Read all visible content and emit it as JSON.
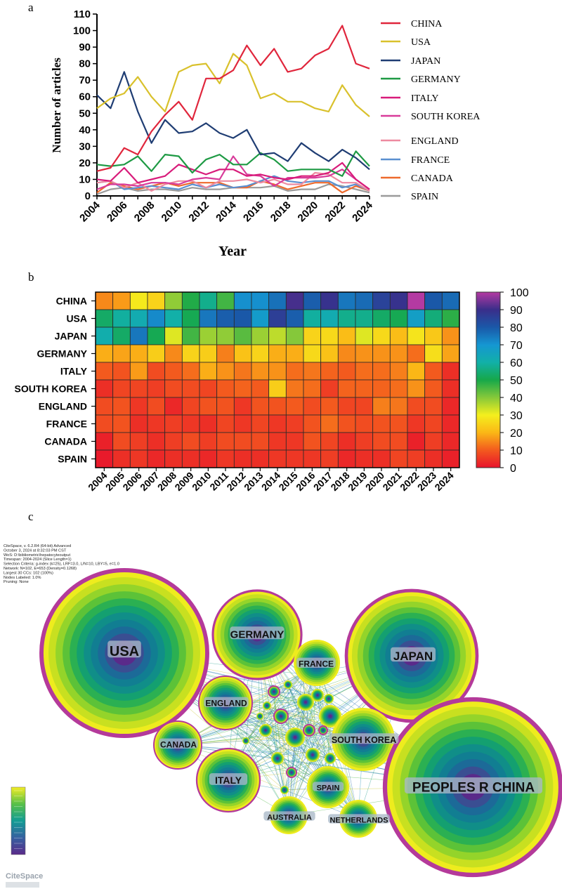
{
  "panel_labels": {
    "a": "a",
    "b": "b",
    "c": "c"
  },
  "colors": {
    "CHINA": "#e0263c",
    "USA": "#d9c12c",
    "JAPAN": "#1f3d73",
    "GERMANY": "#1e9a44",
    "ITALY": "#d81b7a",
    "SOUTH KOREA": "#d83b9a",
    "ENGLAND": "#ee8aa0",
    "FRANCE": "#5a8fd0",
    "CANADA": "#ee6a2c",
    "SPAIN": "#9a9a9a"
  },
  "chart_data": [
    {
      "type": "line",
      "panel": "a",
      "title": "",
      "xlabel": "Year",
      "ylabel": "Number of articles",
      "ylim": [
        0,
        110
      ],
      "yticks": [
        0,
        10,
        20,
        30,
        40,
        50,
        60,
        70,
        80,
        90,
        100,
        110
      ],
      "x": [
        2004,
        2005,
        2006,
        2007,
        2008,
        2009,
        2010,
        2011,
        2012,
        2013,
        2014,
        2015,
        2016,
        2017,
        2018,
        2019,
        2020,
        2021,
        2022,
        2023,
        2024
      ],
      "xticks": [
        "2004",
        "2006",
        "2008",
        "2010",
        "2012",
        "2014",
        "2016",
        "2018",
        "2020",
        "2022",
        "2024"
      ],
      "legend_position": "right",
      "series": [
        {
          "name": "CHINA",
          "values": [
            15,
            17,
            29,
            25,
            39,
            49,
            57,
            46,
            71,
            71,
            76,
            91,
            79,
            89,
            75,
            77,
            85,
            89,
            103,
            80,
            77
          ]
        },
        {
          "name": "USA",
          "values": [
            53,
            59,
            62,
            72,
            60,
            51,
            75,
            79,
            80,
            68,
            86,
            79,
            59,
            62,
            57,
            57,
            53,
            51,
            67,
            55,
            48
          ]
        },
        {
          "name": "JAPAN",
          "values": [
            61,
            53,
            75,
            51,
            32,
            46,
            38,
            39,
            44,
            38,
            35,
            40,
            25,
            26,
            21,
            32,
            26,
            21,
            28,
            23,
            16
          ]
        },
        {
          "name": "GERMANY",
          "values": [
            19,
            18,
            19,
            24,
            15,
            25,
            24,
            14,
            22,
            25,
            19,
            19,
            26,
            22,
            15,
            16,
            16,
            16,
            12,
            27,
            18
          ]
        },
        {
          "name": "ITALY",
          "values": [
            10,
            9,
            17,
            8,
            10,
            12,
            19,
            16,
            13,
            16,
            16,
            12,
            13,
            11,
            10,
            12,
            12,
            14,
            20,
            10,
            4
          ]
        },
        {
          "name": "SOUTH KOREA",
          "values": [
            4,
            7,
            7,
            6,
            8,
            8,
            7,
            10,
            11,
            10,
            24,
            13,
            12,
            6,
            11,
            11,
            11,
            12,
            16,
            10,
            4
          ]
        },
        {
          "name": "ENGLAND",
          "values": [
            8,
            9,
            5,
            8,
            3,
            7,
            9,
            9,
            5,
            9,
            9,
            10,
            8,
            10,
            7,
            7,
            14,
            13,
            8,
            8,
            3
          ]
        },
        {
          "name": "FRANCE",
          "values": [
            8,
            9,
            4,
            5,
            6,
            5,
            4,
            7,
            5,
            7,
            5,
            6,
            9,
            12,
            9,
            8,
            9,
            9,
            5,
            7,
            3
          ]
        },
        {
          "name": "CANADA",
          "values": [
            2,
            8,
            6,
            4,
            6,
            8,
            6,
            8,
            8,
            8,
            5,
            5,
            9,
            7,
            4,
            6,
            8,
            8,
            2,
            6,
            3
          ]
        },
        {
          "name": "SPAIN",
          "values": [
            1,
            4,
            5,
            3,
            4,
            4,
            3,
            5,
            4,
            4,
            5,
            5,
            5,
            6,
            3,
            4,
            4,
            7,
            6,
            4,
            2
          ]
        }
      ]
    },
    {
      "type": "heatmap",
      "panel": "b",
      "rows": [
        "CHINA",
        "USA",
        "JAPAN",
        "GERMANY",
        "ITALY",
        "SOUTH KOREA",
        "ENGLAND",
        "FRANCE",
        "CANADA",
        "SPAIN"
      ],
      "columns": [
        "2004",
        "2005",
        "2006",
        "2007",
        "2008",
        "2009",
        "2010",
        "2011",
        "2012",
        "2013",
        "2014",
        "2015",
        "2016",
        "2017",
        "2018",
        "2019",
        "2020",
        "2021",
        "2022",
        "2023",
        "2024"
      ],
      "values": [
        [
          15,
          17,
          29,
          25,
          39,
          49,
          57,
          46,
          71,
          71,
          76,
          91,
          79,
          89,
          75,
          77,
          85,
          89,
          103,
          80,
          77
        ],
        [
          53,
          59,
          62,
          72,
          60,
          51,
          75,
          79,
          80,
          68,
          86,
          79,
          59,
          62,
          57,
          57,
          53,
          51,
          67,
          55,
          48
        ],
        [
          61,
          53,
          75,
          51,
          32,
          46,
          38,
          39,
          44,
          38,
          35,
          40,
          25,
          26,
          21,
          32,
          26,
          21,
          28,
          23,
          16
        ],
        [
          19,
          18,
          19,
          24,
          15,
          25,
          24,
          14,
          22,
          25,
          19,
          19,
          26,
          22,
          15,
          16,
          16,
          16,
          12,
          27,
          18
        ],
        [
          10,
          9,
          17,
          8,
          10,
          12,
          19,
          16,
          13,
          16,
          16,
          12,
          13,
          11,
          10,
          12,
          12,
          14,
          20,
          10,
          4
        ],
        [
          4,
          7,
          7,
          6,
          8,
          8,
          7,
          10,
          11,
          10,
          24,
          13,
          12,
          6,
          11,
          11,
          11,
          12,
          16,
          10,
          4
        ],
        [
          8,
          9,
          5,
          8,
          3,
          7,
          9,
          9,
          5,
          9,
          9,
          10,
          8,
          10,
          7,
          7,
          14,
          13,
          8,
          8,
          3
        ],
        [
          8,
          9,
          4,
          5,
          6,
          5,
          4,
          7,
          5,
          7,
          5,
          6,
          9,
          12,
          9,
          8,
          9,
          9,
          5,
          7,
          3
        ],
        [
          2,
          8,
          6,
          4,
          6,
          8,
          6,
          8,
          8,
          8,
          5,
          5,
          9,
          7,
          4,
          6,
          8,
          8,
          2,
          6,
          3
        ],
        [
          1,
          4,
          5,
          3,
          4,
          4,
          3,
          5,
          4,
          4,
          5,
          5,
          5,
          6,
          3,
          4,
          4,
          7,
          6,
          4,
          2
        ]
      ],
      "colorbar_ticks": [
        "100",
        "90",
        "80",
        "70",
        "60",
        "50",
        "40",
        "30",
        "20",
        "10",
        "0"
      ],
      "colorbar_range": [
        0,
        100
      ]
    }
  ],
  "network": {
    "info_lines": [
      "CiteSpace, v. 6.2.R4 (64-bit) Advanced",
      "October 3, 2024 at 8:32:03 PM CST",
      "WoS: D:\\bibliometric\\hepatocyteoutput",
      "Timespan: 2004-2024 (Slice Length=1)",
      "Selection Criteria: g-index (k=25), LRF=3.0, L/N=10, LBY=5, e=1.0",
      "Network: N=102, E=653 (Density=0.1268)",
      "Largest 30 CCs: 102 (100%)",
      "Nodes Labeled: 1.0%",
      "Pruning: None"
    ],
    "nodes": [
      {
        "label": "USA",
        "size": 1.0
      },
      {
        "label": "GERMANY",
        "size": 0.53
      },
      {
        "label": "JAPAN",
        "size": 0.79
      },
      {
        "label": "FRANCE",
        "size": 0.28
      },
      {
        "label": "ENGLAND",
        "size": 0.33
      },
      {
        "label": "CANADA",
        "size": 0.29
      },
      {
        "label": "SOUTH KOREA",
        "size": 0.38
      },
      {
        "label": "ITALY",
        "size": 0.38
      },
      {
        "label": "SPAIN",
        "size": 0.25
      },
      {
        "label": "AUSTRALIA",
        "size": 0.23
      },
      {
        "label": "NETHERLANDS",
        "size": 0.23
      },
      {
        "label": "PEOPLES R CHINA",
        "size": 1.06
      }
    ],
    "logo_text": "CiteSpace"
  }
}
